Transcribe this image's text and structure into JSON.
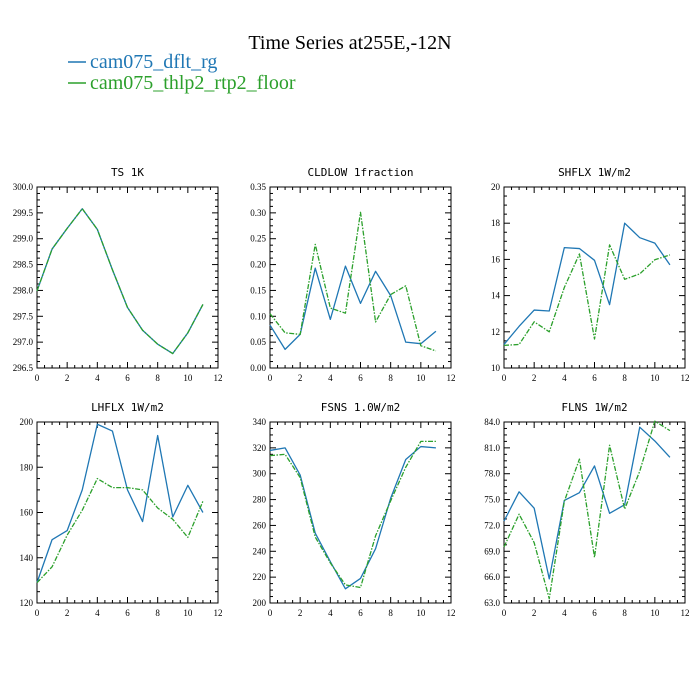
{
  "figure": {
    "title": "Time Series at255E,-12N",
    "legend": [
      {
        "name": "cam075_dflt_rg",
        "color": "#1f77b4",
        "style": "solid"
      },
      {
        "name": "cam075_thlp2_rtp2_floor",
        "color": "#2ca02c",
        "style": "dashed"
      }
    ]
  },
  "chart_data": [
    {
      "type": "line",
      "title": "TS   1K",
      "xlim": [
        0,
        12
      ],
      "xticks": [
        0,
        2,
        4,
        6,
        8,
        10,
        12
      ],
      "ylim": [
        296.5,
        300.0
      ],
      "yticks": [
        296.5,
        297.0,
        297.5,
        298.0,
        298.5,
        299.0,
        299.5,
        300.0
      ],
      "ytick_labels": [
        "296.5",
        "297.0",
        "297.5",
        "298.0",
        "298.5",
        "299.0",
        "299.5",
        "300.0"
      ],
      "x": [
        0,
        1,
        2,
        3,
        4,
        5,
        6,
        7,
        8,
        9,
        10,
        11
      ],
      "series": [
        {
          "name": "cam075_dflt_rg",
          "color": "#1f77b4",
          "dashed": false,
          "values": [
            297.99,
            298.8,
            299.2,
            299.58,
            299.18,
            298.4,
            297.67,
            297.23,
            296.96,
            296.78,
            297.18,
            297.73
          ]
        },
        {
          "name": "cam075_thlp2_rtp2_floor",
          "color": "#2ca02c",
          "dashed": true,
          "values": [
            297.99,
            298.8,
            299.2,
            299.58,
            299.18,
            298.4,
            297.67,
            297.23,
            296.96,
            296.78,
            297.18,
            297.73
          ]
        }
      ]
    },
    {
      "type": "line",
      "title": "CLDLOW   1fraction",
      "xlim": [
        0,
        12
      ],
      "xticks": [
        0,
        2,
        4,
        6,
        8,
        10,
        12
      ],
      "ylim": [
        0.0,
        0.35
      ],
      "yticks": [
        0.0,
        0.05,
        0.1,
        0.15,
        0.2,
        0.25,
        0.3,
        0.35
      ],
      "ytick_labels": [
        "0.00",
        "0.05",
        "0.10",
        "0.15",
        "0.20",
        "0.25",
        "0.30",
        "0.35"
      ],
      "x": [
        0,
        1,
        2,
        3,
        4,
        5,
        6,
        7,
        8,
        9,
        10,
        11
      ],
      "series": [
        {
          "name": "cam075_dflt_rg",
          "color": "#1f77b4",
          "dashed": false,
          "values": [
            0.083,
            0.036,
            0.065,
            0.193,
            0.094,
            0.197,
            0.125,
            0.187,
            0.14,
            0.05,
            0.047,
            0.071
          ]
        },
        {
          "name": "cam075_thlp2_rtp2_floor",
          "color": "#2ca02c",
          "dashed": true,
          "values": [
            0.105,
            0.068,
            0.065,
            0.239,
            0.116,
            0.106,
            0.301,
            0.089,
            0.142,
            0.159,
            0.043,
            0.033
          ]
        }
      ]
    },
    {
      "type": "line",
      "title": "SHFLX   1W/m2",
      "xlim": [
        0,
        12
      ],
      "xticks": [
        0,
        2,
        4,
        6,
        8,
        10,
        12
      ],
      "ylim": [
        10,
        20
      ],
      "yticks": [
        10,
        12,
        14,
        16,
        18,
        20
      ],
      "ytick_labels": [
        "10",
        "12",
        "14",
        "16",
        "18",
        "20"
      ],
      "x": [
        0,
        1,
        2,
        3,
        4,
        5,
        6,
        7,
        8,
        9,
        10,
        11
      ],
      "series": [
        {
          "name": "cam075_dflt_rg",
          "color": "#1f77b4",
          "dashed": false,
          "values": [
            11.3,
            12.3,
            13.2,
            13.15,
            16.65,
            16.6,
            15.95,
            13.5,
            18.0,
            17.2,
            16.9,
            15.7
          ]
        },
        {
          "name": "cam075_thlp2_rtp2_floor",
          "color": "#2ca02c",
          "dashed": true,
          "values": [
            11.25,
            11.3,
            12.55,
            12.0,
            14.45,
            16.3,
            11.6,
            16.8,
            14.9,
            15.2,
            15.98,
            16.25
          ]
        }
      ]
    },
    {
      "type": "line",
      "title": "LHFLX   1W/m2",
      "xlim": [
        0,
        12
      ],
      "xticks": [
        0,
        2,
        4,
        6,
        8,
        10,
        12
      ],
      "ylim": [
        120,
        200
      ],
      "yticks": [
        120,
        140,
        160,
        180,
        200
      ],
      "ytick_labels": [
        "120",
        "140",
        "160",
        "180",
        "200"
      ],
      "x": [
        0,
        1,
        2,
        3,
        4,
        5,
        6,
        7,
        8,
        9,
        10,
        11
      ],
      "series": [
        {
          "name": "cam075_dflt_rg",
          "color": "#1f77b4",
          "dashed": false,
          "values": [
            129,
            148,
            152,
            170,
            199,
            196,
            170,
            156,
            194,
            158,
            172,
            160
          ]
        },
        {
          "name": "cam075_thlp2_rtp2_floor",
          "color": "#2ca02c",
          "dashed": true,
          "values": [
            129,
            136,
            150,
            161,
            175,
            171,
            171,
            170,
            162,
            157,
            149,
            165
          ]
        }
      ]
    },
    {
      "type": "line",
      "title": "FSNS   1.0W/m2",
      "xlim": [
        0,
        12
      ],
      "xticks": [
        0,
        2,
        4,
        6,
        8,
        10,
        12
      ],
      "ylim": [
        200,
        340
      ],
      "yticks": [
        200,
        220,
        240,
        260,
        280,
        300,
        320,
        340
      ],
      "ytick_labels": [
        "200",
        "220",
        "240",
        "260",
        "280",
        "300",
        "320",
        "340"
      ],
      "x": [
        0,
        1,
        2,
        3,
        4,
        5,
        6,
        7,
        8,
        9,
        10,
        11
      ],
      "series": [
        {
          "name": "cam075_dflt_rg",
          "color": "#1f77b4",
          "dashed": false,
          "values": [
            318,
            320,
            299,
            254,
            232,
            211,
            219,
            242,
            281,
            311,
            321,
            320
          ]
        },
        {
          "name": "cam075_thlp2_rtp2_floor",
          "color": "#2ca02c",
          "dashed": true,
          "values": [
            314,
            315,
            297,
            251,
            231,
            214,
            212,
            252,
            279,
            305,
            325,
            325
          ]
        }
      ]
    },
    {
      "type": "line",
      "title": "FLNS   1W/m2",
      "xlim": [
        0,
        12
      ],
      "xticks": [
        0,
        2,
        4,
        6,
        8,
        10,
        12
      ],
      "ylim": [
        63,
        84
      ],
      "yticks": [
        63,
        66,
        69,
        72,
        75,
        78,
        81,
        84
      ],
      "ytick_labels": [
        "63.0",
        "66.0",
        "69.0",
        "72.0",
        "75.0",
        "78.0",
        "81.0",
        "84.0"
      ],
      "x": [
        0,
        1,
        2,
        3,
        4,
        5,
        6,
        7,
        8,
        9,
        10,
        11
      ],
      "series": [
        {
          "name": "cam075_dflt_rg",
          "color": "#1f77b4",
          "dashed": false,
          "values": [
            72.5,
            75.9,
            74.0,
            65.8,
            74.9,
            75.8,
            78.9,
            73.4,
            74.4,
            83.4,
            81.8,
            79.9
          ]
        },
        {
          "name": "cam075_thlp2_rtp2_floor",
          "color": "#2ca02c",
          "dashed": true,
          "values": [
            69.5,
            73.3,
            70.0,
            63.5,
            74.8,
            79.7,
            68.3,
            81.3,
            73.9,
            78.3,
            84.1,
            83.0
          ]
        }
      ]
    }
  ]
}
